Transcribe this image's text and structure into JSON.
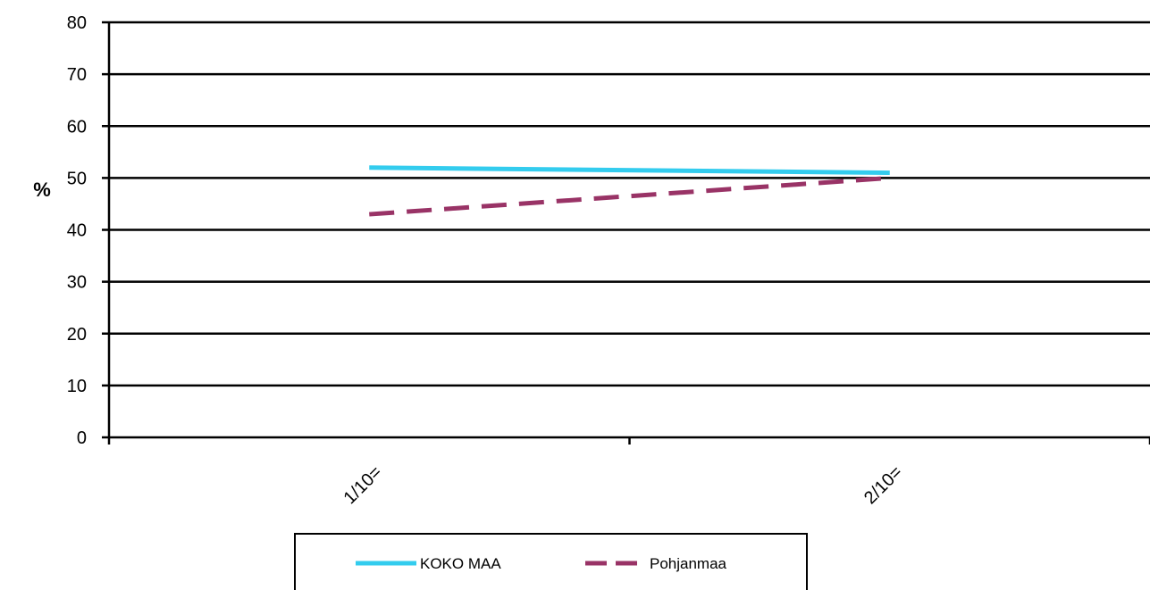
{
  "chart_data": {
    "type": "line",
    "title": "",
    "xlabel": "",
    "ylabel": "%",
    "ylim": [
      0,
      80
    ],
    "yticks": [
      0,
      10,
      20,
      30,
      40,
      50,
      60,
      70,
      80
    ],
    "categories": [
      "1/10=",
      "2/10="
    ],
    "series": [
      {
        "name": "KOKO MAA",
        "values": [
          52,
          51
        ],
        "color": "#33CCEE",
        "style": "solid"
      },
      {
        "name": "Pohjanmaa",
        "values": [
          43,
          50
        ],
        "color": "#993366",
        "style": "dashed"
      }
    ],
    "grid": true,
    "legend": "bottom"
  }
}
